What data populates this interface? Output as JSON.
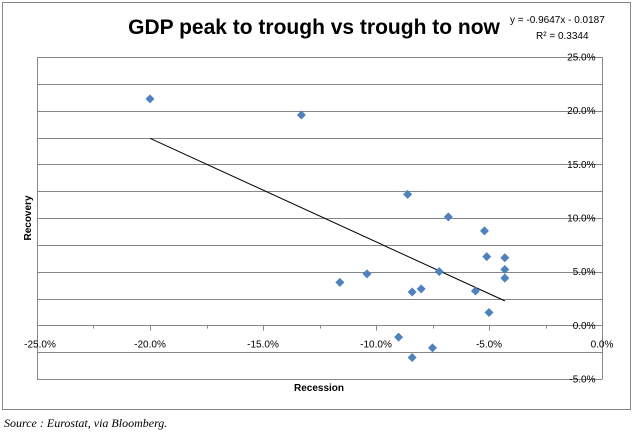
{
  "chart_data": {
    "type": "scatter",
    "title": "GDP peak to trough vs trough to now",
    "xlabel": "Recession",
    "ylabel": "Recovery",
    "xlim": [
      -0.25,
      0.0
    ],
    "ylim": [
      -0.05,
      0.25
    ],
    "x_tick_labels": [
      "-25.0%",
      "-20.0%",
      "-15.0%",
      "-10.0%",
      "-5.0%",
      "0.0%"
    ],
    "y_tick_labels": [
      "25.0%",
      "20.0%",
      "15.0%",
      "10.0%",
      "5.0%",
      "0.0%",
      "-5.0%"
    ],
    "points": [
      {
        "x": -0.2,
        "y": 0.211
      },
      {
        "x": -0.133,
        "y": 0.196
      },
      {
        "x": -0.086,
        "y": 0.122
      },
      {
        "x": -0.068,
        "y": 0.101
      },
      {
        "x": -0.052,
        "y": 0.088
      },
      {
        "x": -0.051,
        "y": 0.064
      },
      {
        "x": -0.043,
        "y": 0.063
      },
      {
        "x": -0.043,
        "y": 0.052
      },
      {
        "x": -0.043,
        "y": 0.044
      },
      {
        "x": -0.072,
        "y": 0.05
      },
      {
        "x": -0.104,
        "y": 0.048
      },
      {
        "x": -0.116,
        "y": 0.04
      },
      {
        "x": -0.08,
        "y": 0.034
      },
      {
        "x": -0.084,
        "y": 0.031
      },
      {
        "x": -0.056,
        "y": 0.032
      },
      {
        "x": -0.05,
        "y": 0.012
      },
      {
        "x": -0.09,
        "y": -0.011
      },
      {
        "x": -0.075,
        "y": -0.021
      },
      {
        "x": -0.084,
        "y": -0.03
      }
    ],
    "trendline": {
      "slope": -0.9647,
      "intercept": -0.0187,
      "x_range": [
        -0.2,
        -0.043
      ],
      "equation": "y = -0.9647x - 0.0187",
      "r_squared": "R² = 0.3344"
    },
    "gridlines": "horizontal",
    "marker": "diamond",
    "colors": {
      "marker": "#4F81BD",
      "trendline": "#000000",
      "grid": "#868686",
      "axis": "#868686"
    }
  },
  "source_note": "Source : Eurostat, via Bloomberg."
}
